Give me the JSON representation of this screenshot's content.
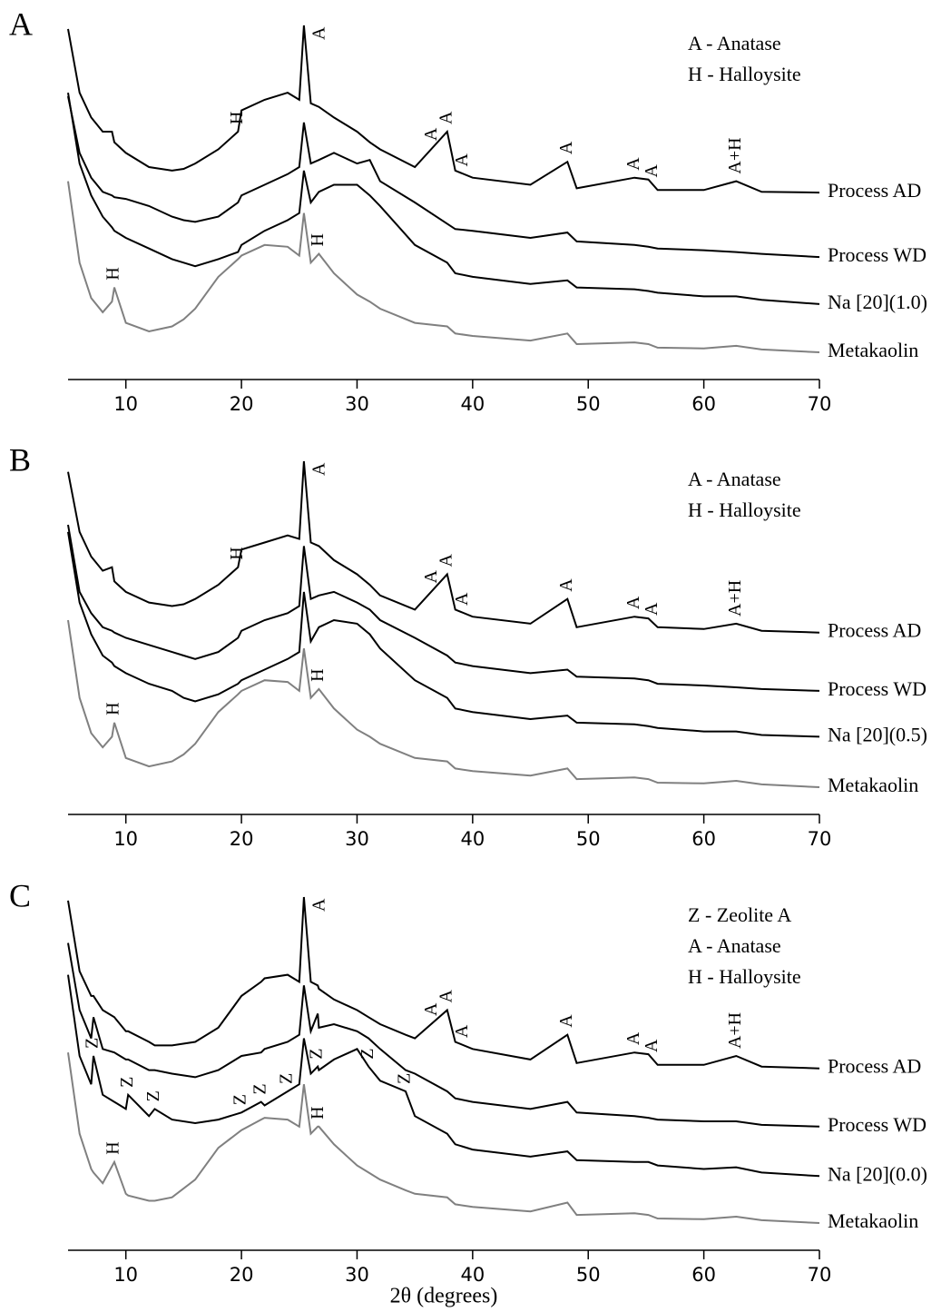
{
  "chart_data": [
    {
      "type": "line",
      "panel_label": "A",
      "legend_text": [
        "A - Anatase",
        "H - Halloysite"
      ],
      "xlim": [
        5,
        70
      ],
      "xticks": [
        10,
        20,
        30,
        40,
        50,
        60,
        70
      ],
      "ylim": [
        0,
        100
      ],
      "x": [
        5,
        6,
        7,
        8,
        8.8,
        9,
        10,
        12,
        14,
        15,
        16,
        18,
        19.7,
        20,
        22,
        24,
        25,
        25.4,
        26,
        26.7,
        28,
        30,
        31.1,
        32,
        35,
        37.8,
        38.5,
        40,
        45,
        48.2,
        49,
        54,
        55.2,
        56,
        60,
        62.8,
        65,
        70
      ],
      "series": [
        {
          "name": "Process AD",
          "color": "#000000",
          "values": [
            99,
            81,
            74,
            70,
            70,
            67,
            64,
            60,
            59,
            59.5,
            61,
            65,
            70,
            76,
            79,
            81,
            79,
            100,
            78,
            77,
            74,
            70,
            67,
            65,
            60,
            70,
            59,
            57,
            55,
            61.5,
            54,
            57,
            56.5,
            53.5,
            53.5,
            56,
            53,
            52.8
          ]
        },
        {
          "name": "Process WD",
          "color": "#000000",
          "values": [
            80,
            64,
            57,
            53,
            52,
            51.5,
            51,
            49,
            46,
            45,
            44.5,
            46,
            50,
            52,
            55,
            58,
            60,
            72.6,
            61,
            62,
            64,
            61,
            62,
            56,
            50,
            44,
            42.5,
            42,
            40,
            41.5,
            39,
            38,
            37.5,
            37,
            36.5,
            36,
            35.5,
            34.6
          ]
        },
        {
          "name": "Na [20](1.0)",
          "color": "#000000",
          "values": [
            81,
            61,
            52,
            46,
            43,
            42,
            40,
            37,
            34,
            33,
            32,
            34,
            36,
            38,
            42,
            45,
            47,
            59,
            50,
            53,
            55,
            55,
            52,
            49,
            38,
            33,
            30,
            29,
            27,
            28,
            26,
            25.5,
            25,
            24.5,
            23.5,
            23.5,
            22.5,
            21.3
          ]
        },
        {
          "name": "Metakaolin",
          "color": "#808080",
          "values": [
            56,
            33,
            23,
            19,
            22,
            26,
            16,
            13.6,
            15,
            17,
            20,
            29,
            34,
            35,
            38,
            37.5,
            35,
            47,
            33,
            35.5,
            30,
            24,
            22,
            20,
            16,
            15,
            13,
            12.3,
            11,
            13,
            10,
            10.5,
            10,
            9,
            8.8,
            9.5,
            8.5,
            7.7
          ]
        }
      ],
      "annotations": [
        {
          "text": "H",
          "x": 9,
          "series": 3
        },
        {
          "text": "H",
          "x": 26.7,
          "series": 3
        },
        {
          "text": "H",
          "x": 19.7,
          "series": 0
        },
        {
          "text": "A",
          "x": 25.4,
          "series": 0
        },
        {
          "text": "A",
          "x": 36.5,
          "series": 0
        },
        {
          "text": "A",
          "x": 37.8,
          "series": 0
        },
        {
          "text": "A",
          "x": 39.2,
          "series": 0
        },
        {
          "text": "A",
          "x": 48.2,
          "series": 0
        },
        {
          "text": "A",
          "x": 54,
          "series": 0
        },
        {
          "text": "A",
          "x": 55.6,
          "series": 0
        },
        {
          "text": "A+H",
          "x": 62.8,
          "series": 0
        }
      ]
    },
    {
      "type": "line",
      "panel_label": "B",
      "legend_text": [
        "A - Anatase",
        "H - Halloysite"
      ],
      "xlim": [
        5,
        70
      ],
      "xticks": [
        10,
        20,
        30,
        40,
        50,
        60,
        70
      ],
      "ylim": [
        0,
        100
      ],
      "x": [
        5,
        6,
        7,
        8,
        8.8,
        9,
        10,
        12,
        14,
        15,
        16,
        18,
        19.7,
        20,
        22,
        24,
        25,
        25.4,
        26,
        26.7,
        28,
        30,
        31.1,
        32,
        35,
        37.8,
        38.5,
        40,
        45,
        48.2,
        49,
        54,
        55.2,
        56,
        60,
        62.8,
        65,
        70
      ],
      "series": [
        {
          "name": "Process AD",
          "color": "#000000",
          "values": [
            97,
            80,
            73,
            69,
            70,
            66,
            63,
            60,
            59,
            59.5,
            61,
            65,
            70,
            75,
            77,
            79,
            78,
            100,
            77,
            76,
            72,
            68,
            65,
            62,
            58,
            68,
            58,
            56,
            54,
            61,
            53,
            56,
            55.5,
            53,
            52.5,
            54,
            52,
            51.5
          ]
        },
        {
          "name": "Process WD",
          "color": "#000000",
          "values": [
            82,
            63,
            57,
            53,
            52,
            51.5,
            50,
            48,
            46,
            45,
            44,
            46,
            50,
            52,
            55,
            57,
            59,
            76,
            61,
            62,
            63,
            60,
            58,
            55,
            50,
            45,
            43,
            42,
            40,
            41,
            39,
            38.5,
            38,
            37,
            36.5,
            36,
            35.5,
            35
          ]
        },
        {
          "name": "Na [20](0.5)",
          "color": "#000000",
          "values": [
            80,
            60,
            51,
            45,
            43,
            42,
            40,
            37,
            35,
            33,
            32,
            34,
            37,
            38,
            41,
            44,
            46,
            63,
            49,
            53,
            55,
            54,
            51,
            47,
            38,
            33,
            30,
            29,
            27,
            28,
            26,
            25.5,
            25,
            24.5,
            23.5,
            23.5,
            22.5,
            22
          ]
        },
        {
          "name": "Metakaolin",
          "color": "#808080",
          "values": [
            55,
            33,
            23,
            19,
            22,
            26,
            16,
            13.6,
            15,
            17,
            20,
            29,
            34,
            35,
            38,
            37.5,
            35,
            47,
            33,
            35.5,
            30,
            24,
            22,
            20,
            16,
            15,
            13,
            12.3,
            11,
            13,
            10,
            10.5,
            10,
            9,
            8.8,
            9.5,
            8.5,
            7.7
          ]
        }
      ],
      "annotations": [
        {
          "text": "H",
          "x": 9,
          "series": 3
        },
        {
          "text": "H",
          "x": 26.7,
          "series": 3
        },
        {
          "text": "H",
          "x": 19.7,
          "series": 0
        },
        {
          "text": "A",
          "x": 25.4,
          "series": 0
        },
        {
          "text": "A",
          "x": 36.5,
          "series": 0
        },
        {
          "text": "A",
          "x": 37.8,
          "series": 0
        },
        {
          "text": "A",
          "x": 39.2,
          "series": 0
        },
        {
          "text": "A",
          "x": 48.2,
          "series": 0
        },
        {
          "text": "A",
          "x": 54,
          "series": 0
        },
        {
          "text": "A",
          "x": 55.6,
          "series": 0
        },
        {
          "text": "A+H",
          "x": 62.8,
          "series": 0
        }
      ]
    },
    {
      "type": "line",
      "panel_label": "C",
      "legend_text": [
        "Z - Zeolite A",
        "A - Anatase",
        "H - Halloysite"
      ],
      "x_label": "2θ (degrees)",
      "xlim": [
        5,
        70
      ],
      "xticks": [
        10,
        20,
        30,
        40,
        50,
        60,
        70
      ],
      "ylim": [
        0,
        100
      ],
      "x": [
        5,
        6,
        7,
        7.2,
        8,
        9,
        10,
        10.2,
        12,
        12.5,
        14,
        16,
        18,
        20,
        21.7,
        22,
        24,
        25,
        25.4,
        26,
        26.6,
        26.7,
        28,
        30,
        31,
        32,
        34.2,
        35,
        37.8,
        38.5,
        40,
        45,
        48.2,
        49,
        54,
        55.2,
        56,
        60,
        62.8,
        65,
        70
      ],
      "series": [
        {
          "name": "Process AD",
          "color": "#000000",
          "values": [
            99,
            79,
            72,
            72,
            68,
            66,
            62,
            62,
            59,
            58,
            58,
            59,
            63,
            72,
            76,
            77,
            78,
            76,
            100,
            76,
            75,
            74,
            71,
            68,
            66,
            64,
            61,
            60,
            68,
            59,
            57,
            54,
            61,
            53,
            56,
            55.5,
            52.5,
            52.5,
            55,
            52,
            51.5
          ]
        },
        {
          "name": "Process WD",
          "color": "#000000",
          "values": [
            87,
            68,
            60,
            66,
            57,
            56,
            54,
            54,
            51,
            51,
            50,
            49,
            51,
            55,
            56,
            57,
            59,
            61,
            75,
            62,
            67,
            63,
            64,
            62,
            60,
            57,
            51,
            50,
            45,
            43,
            42,
            40,
            42,
            39,
            38,
            37.5,
            37,
            36.5,
            36.5,
            35.5,
            35
          ]
        },
        {
          "name": "Na [20](0.0)",
          "color": "#000000",
          "values": [
            78,
            55,
            47,
            55,
            44,
            42,
            40,
            44,
            38,
            40,
            37,
            36,
            37,
            39,
            42,
            41,
            45,
            47,
            60,
            50,
            52,
            51,
            54,
            57,
            52,
            48,
            45,
            38,
            33,
            30,
            28.5,
            26.5,
            28,
            25.5,
            25,
            25,
            24,
            23,
            23.5,
            22,
            21
          ]
        },
        {
          "name": "Metakaolin",
          "color": "#808080",
          "values": [
            56,
            33,
            23,
            22,
            19,
            25,
            16,
            15.5,
            14,
            14,
            15,
            20,
            29,
            34,
            37,
            37.5,
            37,
            35,
            47,
            33,
            35,
            35,
            30,
            24,
            22,
            20,
            17,
            16,
            15,
            13,
            12.3,
            11,
            13.5,
            10,
            10.5,
            10,
            9,
            8.8,
            9.5,
            8.5,
            7.7
          ]
        }
      ],
      "annotations": [
        {
          "text": "H",
          "x": 9,
          "series": 3
        },
        {
          "text": "H",
          "x": 26.7,
          "series": 3
        },
        {
          "text": "Z",
          "x": 7.2,
          "series": 2
        },
        {
          "text": "Z",
          "x": 10.2,
          "series": 2
        },
        {
          "text": "Z",
          "x": 12.5,
          "series": 2
        },
        {
          "text": "Z",
          "x": 20,
          "series": 2
        },
        {
          "text": "Z",
          "x": 21.7,
          "series": 2
        },
        {
          "text": "Z",
          "x": 24,
          "series": 2
        },
        {
          "text": "Z",
          "x": 26.6,
          "series": 2
        },
        {
          "text": "Z",
          "x": 31,
          "series": 2
        },
        {
          "text": "Z",
          "x": 34.2,
          "series": 2
        },
        {
          "text": "A",
          "x": 25.4,
          "series": 0
        },
        {
          "text": "A",
          "x": 36.5,
          "series": 0
        },
        {
          "text": "A",
          "x": 37.8,
          "series": 0
        },
        {
          "text": "A",
          "x": 39.2,
          "series": 0
        },
        {
          "text": "A",
          "x": 48.2,
          "series": 0
        },
        {
          "text": "A",
          "x": 54,
          "series": 0
        },
        {
          "text": "A",
          "x": 55.6,
          "series": 0
        },
        {
          "text": "A+H",
          "x": 62.8,
          "series": 0
        }
      ]
    }
  ]
}
